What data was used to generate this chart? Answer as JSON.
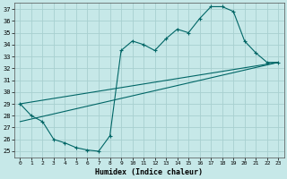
{
  "xlabel": "Humidex (Indice chaleur)",
  "bg_color": "#c6e8e8",
  "grid_color": "#a8d0d0",
  "line_color": "#006666",
  "xlim": [
    -0.5,
    23.5
  ],
  "ylim": [
    24.5,
    37.5
  ],
  "xticks": [
    0,
    1,
    2,
    3,
    4,
    5,
    6,
    7,
    8,
    9,
    10,
    11,
    12,
    13,
    14,
    15,
    16,
    17,
    18,
    19,
    20,
    21,
    22,
    23
  ],
  "yticks": [
    25,
    26,
    27,
    28,
    29,
    30,
    31,
    32,
    33,
    34,
    35,
    36,
    37
  ],
  "curve1_x": [
    0,
    1,
    2,
    3,
    4,
    5,
    6,
    7,
    8,
    9,
    10,
    11,
    12,
    13,
    14,
    15,
    16,
    17,
    18,
    19,
    20,
    21,
    22,
    23
  ],
  "curve1_y": [
    29,
    28,
    27.5,
    26,
    25.7,
    25.3,
    25.1,
    25,
    26.3,
    33.5,
    34.3,
    34.0,
    33.5,
    34.5,
    35.3,
    35.0,
    36.2,
    37.2,
    37.2,
    36.8,
    34.3,
    33.3,
    32.5,
    32.5
  ],
  "curve2_x": [
    0,
    23
  ],
  "curve2_y": [
    27.5,
    32.5
  ],
  "curve3_x": [
    0,
    23
  ],
  "curve3_y": [
    29.0,
    32.5
  ]
}
